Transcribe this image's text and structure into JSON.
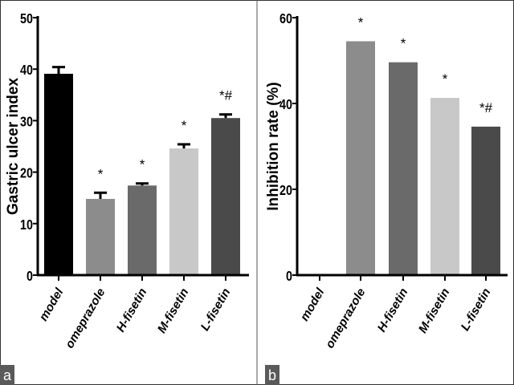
{
  "chart_data": [
    {
      "type": "bar",
      "panel_label": "a",
      "ylabel": "Gastric ulcer index",
      "xlabel": "",
      "ylim": [
        0,
        50
      ],
      "yticks": [
        0,
        10,
        20,
        30,
        40,
        50
      ],
      "categories": [
        "model",
        "omeprazole",
        "H-fisetin",
        "M-fisetin",
        "L-fisetin"
      ],
      "values": [
        39.1,
        14.8,
        17.4,
        24.6,
        30.5
      ],
      "error_upper": [
        40.4,
        16.0,
        17.8,
        25.4,
        31.2
      ],
      "annotations": [
        "",
        "*",
        "*",
        "*",
        "*#"
      ],
      "colors": [
        "#000000",
        "#8c8c8c",
        "#6a6a6a",
        "#c8c8c8",
        "#4a4a4a"
      ],
      "grid": false
    },
    {
      "type": "bar",
      "panel_label": "b",
      "ylabel": "Inhibition rate (%)",
      "xlabel": "",
      "ylim": [
        0,
        60
      ],
      "yticks": [
        0,
        20,
        40,
        60
      ],
      "categories": [
        "model",
        "omeprazole",
        "H-fisetin",
        "M-fisetin",
        "L-fisetin"
      ],
      "values": [
        0,
        54.5,
        49.6,
        41.3,
        34.6
      ],
      "annotations": [
        "",
        "*",
        "*",
        "*",
        "*#"
      ],
      "colors": [
        "#000000",
        "#8c8c8c",
        "#6a6a6a",
        "#c8c8c8",
        "#4a4a4a"
      ],
      "grid": false
    }
  ]
}
